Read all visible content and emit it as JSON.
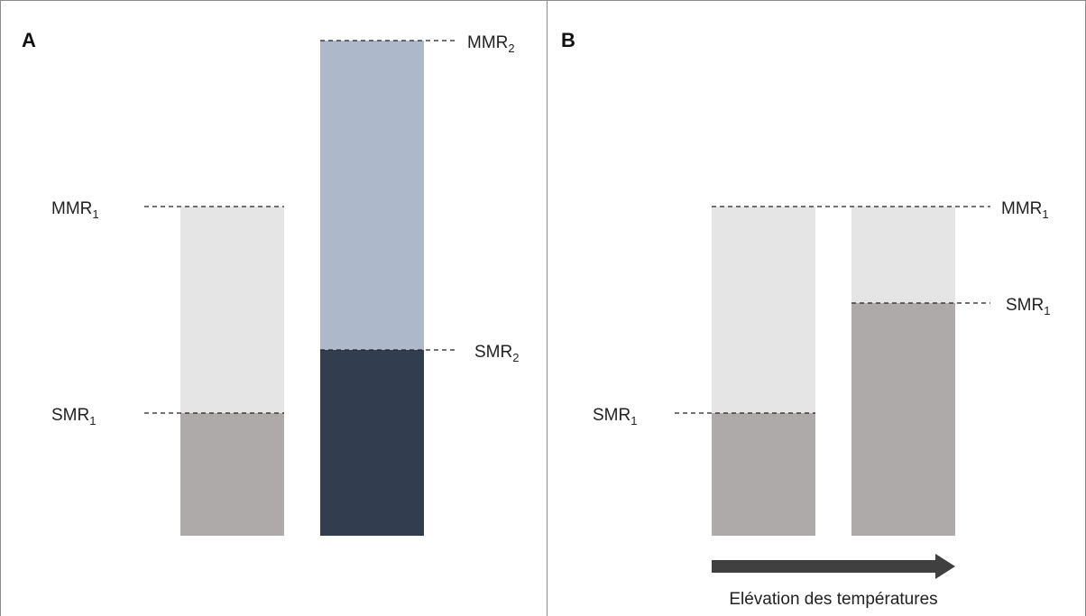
{
  "panels": {
    "a": {
      "letter": "A",
      "bar1": {
        "mmr_label": "MMR",
        "mmr_sub": "1",
        "smr_label": "SMR",
        "smr_sub": "1"
      },
      "bar2": {
        "mmr_label": "MMR",
        "mmr_sub": "2",
        "smr_label": "SMR",
        "smr_sub": "2"
      }
    },
    "b": {
      "letter": "B",
      "mmr_label": "MMR",
      "mmr_sub": "1",
      "smr_left_label": "SMR",
      "smr_left_sub": "1",
      "smr_right_label": "SMR",
      "smr_right_sub": "1",
      "arrow_caption": "Elévation des températures"
    }
  },
  "colors": {
    "light_grey": "#e5e5e5",
    "warm_grey": "#aeaaa9",
    "light_blue": "#adb8ca",
    "dark_navy": "#323e4f",
    "arrow": "#404040",
    "border": "#8c8c8c"
  }
}
